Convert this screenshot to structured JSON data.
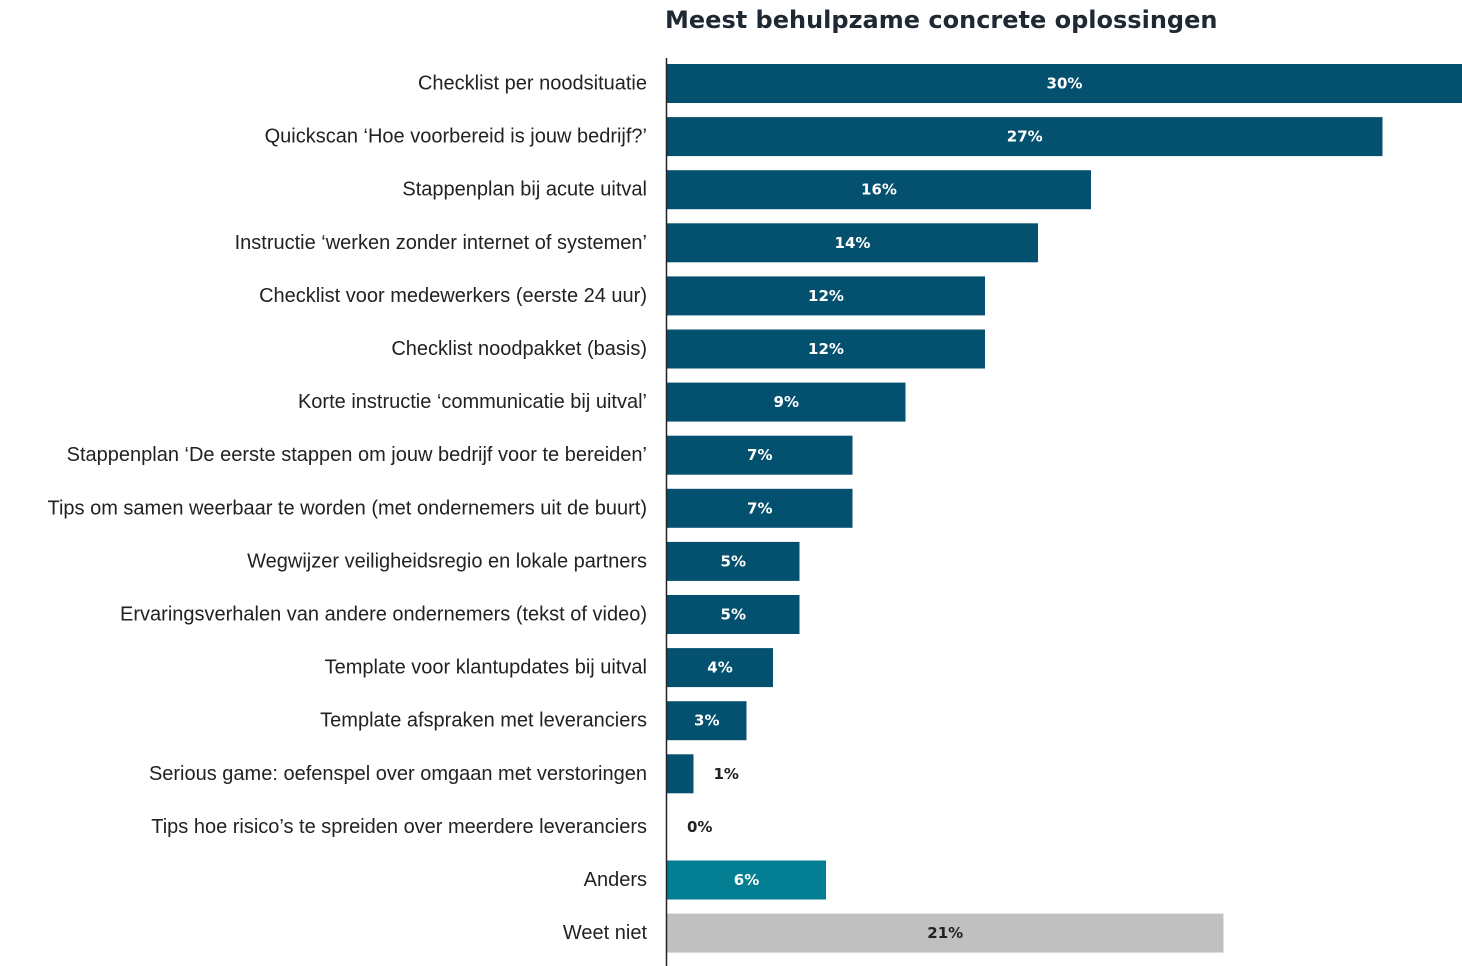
{
  "chart_data": {
    "type": "bar",
    "orientation": "horizontal",
    "title": "Meest behulpzame concrete oplossingen",
    "xlabel": "",
    "ylabel": "",
    "xlim": [
      0,
      30
    ],
    "grid": false,
    "value_suffix": "%",
    "categories": [
      "Checklist per noodsituatie",
      "Quickscan ‘Hoe voorbereid is jouw bedrijf?’",
      "Stappenplan bij acute uitval",
      "Instructie ‘werken zonder internet of systemen’",
      "Checklist voor medewerkers (eerste 24 uur)",
      "Checklist noodpakket (basis)",
      "Korte instructie ‘communicatie bij uitval’",
      "Stappenplan ‘De eerste stappen om jouw bedrijf voor te bereiden’",
      "Tips om samen weerbaar te worden (met ondernemers uit de buurt)",
      "Wegwijzer veiligheidsregio en lokale partners",
      "Ervaringsverhalen van andere ondernemers (tekst of video)",
      "Template voor klantupdates bij uitval",
      "Template afspraken met leveranciers",
      "Serious game: oefenspel over omgaan met verstoringen",
      "Tips hoe risico’s te spreiden over meerdere leveranciers",
      "Anders",
      "Weet niet"
    ],
    "values": [
      30,
      27,
      16,
      14,
      12,
      12,
      9,
      7,
      7,
      5,
      5,
      4,
      3,
      1,
      0,
      6,
      21
    ],
    "bar_groups": [
      "solution",
      "solution",
      "solution",
      "solution",
      "solution",
      "solution",
      "solution",
      "solution",
      "solution",
      "solution",
      "solution",
      "solution",
      "solution",
      "solution",
      "solution",
      "other",
      "unknown"
    ],
    "colors": {
      "solution": "#04516f",
      "other": "#047e92",
      "unknown": "#c0c0c0",
      "label_on_dark": "#ffffff",
      "label_on_light": "#222222",
      "axis": "#222222"
    }
  }
}
